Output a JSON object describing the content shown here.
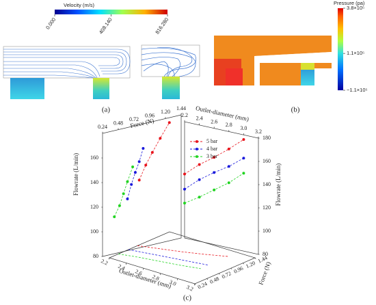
{
  "panels": {
    "a": "(a)",
    "b": "(b)",
    "c": "(c)"
  },
  "velocity_colorbar": {
    "title": "Velocity (m/s)",
    "range": [
      0,
      816.28
    ],
    "ticks": [
      {
        "value": 0,
        "label": "0.000"
      },
      {
        "value": 408.14,
        "label": "408.140"
      },
      {
        "value": 816.28,
        "label": "816.280"
      }
    ]
  },
  "pressure_colorbar": {
    "title": "Pressure (pa)",
    "range": [
      -110000,
      380000
    ],
    "ticks": [
      {
        "value": 380000,
        "label": "3.8×10⁵"
      },
      {
        "value": 110000,
        "label": "1.1×10⁵"
      },
      {
        "value": -110000,
        "label": "−1.1×10⁵"
      }
    ]
  },
  "chart_data": {
    "type": "scatter3d",
    "force_label": "Force (N)",
    "diameter_label": "Outlet-diameter (mm)",
    "flowrate_label": "Flowrate (L/min)",
    "flowrate_label_right": "Flowrate (L/min)",
    "floor_diameter_label": "Outlet-diameter (mm)",
    "floor_force_label": "Force (N)",
    "force_lim": [
      0.24,
      1.44
    ],
    "diameter_lim": [
      2.2,
      3.2
    ],
    "ylim": [
      80,
      180
    ],
    "force_ticks": [
      0.24,
      0.48,
      0.72,
      0.96,
      {
        "value": 1.2,
        "label": "1.20"
      },
      1.44
    ],
    "diameter_ticks": [
      2.2,
      2.4,
      2.6,
      2.8,
      {
        "value": 3,
        "label": "3.0"
      },
      3.2
    ],
    "yticks": [
      80,
      100,
      120,
      140,
      160
    ],
    "y2ticks": [
      80,
      100,
      120,
      140,
      160,
      180
    ],
    "floor_diameter_ticks": [
      2.2,
      2.4,
      2.6,
      2.8,
      {
        "value": 3,
        "label": "3.0"
      },
      3.2
    ],
    "floor_force_ticks": [
      0.24,
      0.48,
      0.72,
      0.96,
      {
        "value": 1.2,
        "label": "1.20"
      },
      1.44
    ],
    "series": [
      {
        "name": "5 bar",
        "color": "#e8141c",
        "outlet_diameter": [
          2.2,
          2.4,
          2.6,
          2.8,
          3.0
        ],
        "force": [
          0.8,
          0.9,
          1.0,
          1.12,
          1.26
        ],
        "flowrate": [
          135,
          146,
          155,
          165,
          176
        ]
      },
      {
        "name": "4 bar",
        "color": "#1a1adc",
        "outlet_diameter": [
          2.2,
          2.4,
          2.6,
          2.8,
          3.0
        ],
        "force": [
          0.62,
          0.68,
          0.74,
          0.8,
          0.86
        ],
        "flowrate": [
          122,
          133,
          142,
          150,
          160
        ]
      },
      {
        "name": "3 bar",
        "color": "#22d422",
        "outlet_diameter": [
          2.2,
          2.4,
          2.6,
          2.8,
          3.0
        ],
        "force": [
          0.42,
          0.5,
          0.56,
          0.62,
          0.7
        ],
        "flowrate": [
          110,
          118,
          127,
          136,
          147
        ]
      }
    ]
  }
}
